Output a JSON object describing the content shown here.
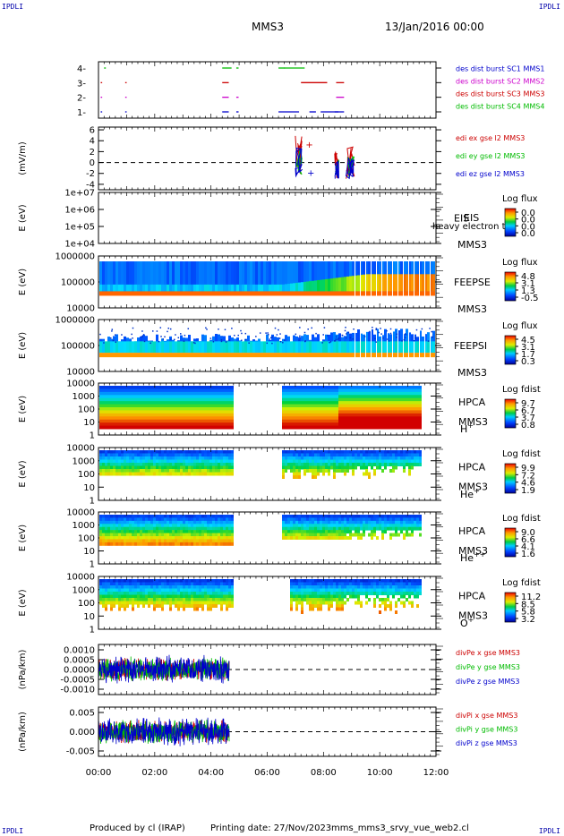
{
  "corner_label": "IPDLI",
  "header": {
    "spacecraft": "MMS3",
    "datetime": "13/Jan/2016 00:00"
  },
  "footer": {
    "produced_by": "Produced by cl (IRAP)",
    "printing_date": "Printing date: 27/Nov/2023",
    "filename": "mms_mms3_srvy_vue_web2.cl"
  },
  "colors": {
    "blue": "#0000cc",
    "red": "#cc0000",
    "green": "#00bb00",
    "magenta": "#cc00cc"
  },
  "chart_data": {
    "type": "multi-panel time series",
    "x_ticks": [
      "00:00",
      "02:00",
      "04:00",
      "06:00",
      "08:00",
      "10:00",
      "12:00"
    ],
    "xlim_hours": [
      0,
      12
    ],
    "panels": [
      {
        "id": "burst",
        "type": "scatter",
        "yticks": [
          "1-",
          "2-",
          "3-",
          "4-"
        ],
        "legend": [
          {
            "label": "des dist burst SC1 MMS1",
            "color": "#0000cc"
          },
          {
            "label": "des dist burst SC2 MMS2",
            "color": "#cc00cc"
          },
          {
            "label": "des dist burst SC3 MMS3",
            "color": "#cc0000"
          },
          {
            "label": "des dist burst SC4 MMS4",
            "color": "#00bb00"
          }
        ]
      },
      {
        "id": "edi",
        "type": "line",
        "ylabel": "(mV/m)",
        "yticks": [
          "6",
          "4",
          "2",
          "0",
          "-2",
          "-4"
        ],
        "ylim": [
          -5,
          6.5
        ],
        "legend": [
          {
            "label": "edi ex gse l2 MMS3",
            "color": "#cc0000"
          },
          {
            "label": "edi ey gse l2 MMS3",
            "color": "#00bb00"
          },
          {
            "label": "edi ez gse l2 MMS3",
            "color": "#0000cc"
          }
        ]
      },
      {
        "id": "eis",
        "type": "heatmap",
        "ylabel": "E (eV)",
        "yticks": [
          "1e+07",
          "1e+06",
          "1e+05",
          "1e+04"
        ],
        "instrument": "EIS",
        "overlay": "heavy electron to",
        "spacecraft": "MMS3",
        "cbar_title": "Log flux",
        "cbar_ticks": [
          "0.0",
          "0.0",
          "0.0",
          "0.0"
        ]
      },
      {
        "id": "feepse",
        "type": "heatmap",
        "ylabel": "E (eV)",
        "yticks": [
          "1000000",
          "100000",
          "10000"
        ],
        "instrument": "FEEPSE",
        "spacecraft": "MMS3",
        "cbar_title": "Log flux",
        "cbar_ticks": [
          "4.8",
          "3.1",
          "1.3",
          "-0.5"
        ]
      },
      {
        "id": "feepsi",
        "type": "heatmap",
        "ylabel": "E (eV)",
        "yticks": [
          "1000000",
          "100000",
          "10000"
        ],
        "instrument": "FEEPSI",
        "spacecraft": "MMS3",
        "cbar_title": "Log flux",
        "cbar_ticks": [
          "4.5",
          "3.1",
          "1.7",
          "0.3"
        ]
      },
      {
        "id": "hpca_h",
        "type": "heatmap",
        "ylabel": "E (eV)",
        "yticks": [
          "10000",
          "1000",
          "100",
          "10",
          "1"
        ],
        "instrument": "HPCA",
        "spacecraft": "MMS3",
        "species": "H",
        "charge": "+",
        "cbar_title": "Log fdist",
        "cbar_ticks": [
          "9.7",
          "6.7",
          "3.7",
          "0.8"
        ]
      },
      {
        "id": "hpca_he",
        "type": "heatmap",
        "ylabel": "E (eV)",
        "yticks": [
          "10000",
          "1000",
          "100",
          "10",
          "1"
        ],
        "instrument": "HPCA",
        "spacecraft": "MMS3",
        "species": "He",
        "charge": "+",
        "cbar_title": "Log fdist",
        "cbar_ticks": [
          "9.9",
          "7.2",
          "4.6",
          "1.9"
        ]
      },
      {
        "id": "hpca_hepp",
        "type": "heatmap",
        "ylabel": "E (eV)",
        "yticks": [
          "10000",
          "1000",
          "100",
          "10",
          "1"
        ],
        "instrument": "HPCA",
        "spacecraft": "MMS3",
        "species": "He",
        "charge": "++",
        "cbar_title": "Log fdist",
        "cbar_ticks": [
          "9.0",
          "6.6",
          "4.1",
          "1.6"
        ]
      },
      {
        "id": "hpca_o",
        "type": "heatmap",
        "ylabel": "E (eV)",
        "yticks": [
          "10000",
          "1000",
          "100",
          "10",
          "1"
        ],
        "instrument": "HPCA",
        "spacecraft": "MMS3",
        "species": "O",
        "charge": "+",
        "cbar_title": "Log fdist",
        "cbar_ticks": [
          "11.2",
          "8.5",
          "5.8",
          "3.2"
        ]
      },
      {
        "id": "divpe",
        "type": "line",
        "ylabel": "(nPa/km)",
        "yticks": [
          "0.0010",
          "0.0005",
          "0.0000",
          "-0.0005",
          "-0.0010"
        ],
        "legend": [
          {
            "label": "divPe x gse MMS3",
            "color": "#cc0000"
          },
          {
            "label": "divPe y gse MMS3",
            "color": "#00bb00"
          },
          {
            "label": "divPe z gse MMS3",
            "color": "#0000cc"
          }
        ]
      },
      {
        "id": "divpi",
        "type": "line",
        "ylabel": "(nPa/km)",
        "yticks": [
          "0.005",
          "0.000",
          "-0.005"
        ],
        "legend": [
          {
            "label": "divPi x gse MMS3",
            "color": "#cc0000"
          },
          {
            "label": "divPi y gse MMS3",
            "color": "#00bb00"
          },
          {
            "label": "divPi z gse MMS3",
            "color": "#0000cc"
          }
        ]
      }
    ]
  }
}
